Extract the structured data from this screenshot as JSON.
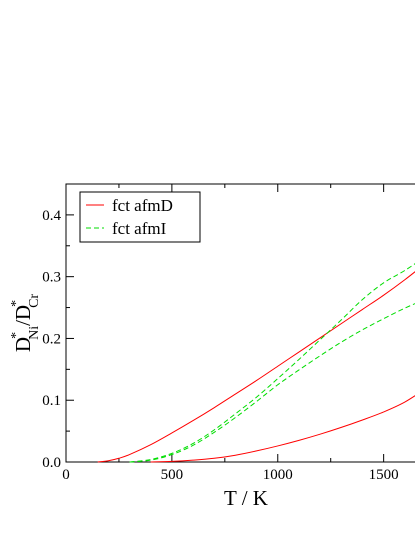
{
  "chart_data": {
    "type": "line",
    "xlabel": "T / K",
    "ylabel": {
      "main": "D",
      "sup1": "*",
      "sub1": "Ni",
      "slash": "/D",
      "sup2": "*",
      "sub2": "Cr"
    },
    "xlim": [
      0,
      1700
    ],
    "ylim": [
      0.0,
      0.45
    ],
    "xticks": [
      0,
      500,
      1000,
      1500
    ],
    "yticks": [
      0.0,
      0.1,
      0.2,
      0.3,
      0.4
    ],
    "xtick_labels": [
      "0",
      "500",
      "1000",
      "1500"
    ],
    "ytick_labels": [
      "0.0",
      "0.1",
      "0.2",
      "0.3",
      "0.4"
    ],
    "grid": false,
    "legend_position": "top-left",
    "series": [
      {
        "name": "fct afmD",
        "color": "#ff0000",
        "dash": "solid",
        "x": [
          150,
          200,
          250,
          300,
          400,
          500,
          600,
          700,
          800,
          900,
          1000,
          1100,
          1200,
          1300,
          1400,
          1500,
          1600,
          1700
        ],
        "y": [
          0.0,
          0.002,
          0.006,
          0.012,
          0.028,
          0.047,
          0.067,
          0.088,
          0.11,
          0.132,
          0.155,
          0.178,
          0.201,
          0.224,
          0.247,
          0.27,
          0.295,
          0.322
        ]
      },
      {
        "name": "",
        "color": "#ff0000",
        "dash": "solid",
        "x": [
          400,
          500,
          600,
          700,
          800,
          900,
          1000,
          1100,
          1200,
          1300,
          1400,
          1500,
          1600,
          1700
        ],
        "y": [
          0.0,
          0.001,
          0.003,
          0.006,
          0.011,
          0.018,
          0.026,
          0.035,
          0.045,
          0.056,
          0.068,
          0.081,
          0.097,
          0.119
        ]
      },
      {
        "name": "fct afmI",
        "color": "#00dd00",
        "dash": "dashed",
        "x": [
          300,
          400,
          500,
          600,
          700,
          800,
          900,
          1000,
          1100,
          1200,
          1300,
          1400,
          1500,
          1600,
          1700
        ],
        "y": [
          0.0,
          0.004,
          0.014,
          0.03,
          0.052,
          0.078,
          0.105,
          0.135,
          0.166,
          0.198,
          0.23,
          0.263,
          0.29,
          0.31,
          0.333
        ]
      },
      {
        "name": "",
        "color": "#00dd00",
        "dash": "dashed",
        "x": [
          300,
          400,
          500,
          600,
          700,
          800,
          900,
          1000,
          1100,
          1200,
          1300,
          1400,
          1500,
          1600,
          1700
        ],
        "y": [
          0.0,
          0.003,
          0.012,
          0.027,
          0.048,
          0.072,
          0.098,
          0.125,
          0.149,
          0.172,
          0.194,
          0.214,
          0.232,
          0.249,
          0.264
        ]
      }
    ]
  }
}
